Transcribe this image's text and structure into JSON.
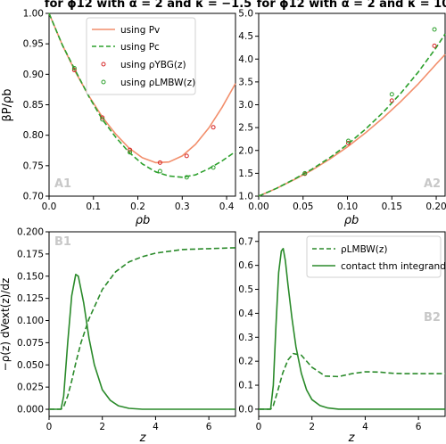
{
  "figure": {
    "y_label_top": "βP/ρb",
    "y_label_bottom": "−ρ(z) dVext(z)/dz",
    "x_label_top": "ρb",
    "x_label_bottom": "z"
  },
  "colors": {
    "orange": "#f28e6b",
    "green": "#2a8a2a",
    "red": "#d62728"
  },
  "chart_data": [
    {
      "id": "A1",
      "type": "line",
      "title": "for ϕ12 with α = 2 and κ = −1.5",
      "panel_label": "A1",
      "xlabel": "ρb",
      "ylabel": "βP/ρb",
      "xlim": [
        0,
        0.42
      ],
      "ylim": [
        0.7,
        1.0
      ],
      "xticks": [
        0.0,
        0.1,
        0.2,
        0.3,
        0.4
      ],
      "yticks": [
        0.7,
        0.75,
        0.8,
        0.85,
        0.9,
        0.95,
        1.0
      ],
      "xtick_labels": [
        "0.0",
        "0.1",
        "0.2",
        "0.3",
        "0.4"
      ],
      "ytick_labels": [
        "0.70",
        "0.75",
        "0.80",
        "0.85",
        "0.90",
        "0.95",
        "1.00"
      ],
      "legend_position": "upper-right",
      "series": [
        {
          "name": "using Pv",
          "style": "solid",
          "color": "#f28e6b",
          "x": [
            0,
            0.03,
            0.06,
            0.09,
            0.12,
            0.15,
            0.18,
            0.21,
            0.24,
            0.27,
            0.3,
            0.33,
            0.36,
            0.39,
            0.42
          ],
          "y": [
            1.0,
            0.948,
            0.903,
            0.864,
            0.83,
            0.802,
            0.779,
            0.763,
            0.755,
            0.756,
            0.766,
            0.785,
            0.812,
            0.846,
            0.885
          ]
        },
        {
          "name": "using Pc",
          "style": "dashed",
          "color": "#2ca02c",
          "x": [
            0,
            0.03,
            0.06,
            0.09,
            0.12,
            0.15,
            0.18,
            0.21,
            0.24,
            0.27,
            0.3,
            0.33,
            0.36,
            0.39,
            0.42
          ],
          "y": [
            1.0,
            0.948,
            0.905,
            0.863,
            0.826,
            0.797,
            0.772,
            0.753,
            0.74,
            0.733,
            0.731,
            0.735,
            0.745,
            0.758,
            0.773
          ]
        },
        {
          "name": "using ρYBG(z)",
          "style": "markers",
          "color": "#d62728",
          "x": [
            0.057,
            0.12,
            0.182,
            0.25,
            0.31,
            0.37
          ],
          "y": [
            0.907,
            0.829,
            0.776,
            0.755,
            0.766,
            0.813
          ]
        },
        {
          "name": "using ρLMBW(z)",
          "style": "markers",
          "color": "#2ca02c",
          "x": [
            0.057,
            0.12,
            0.182,
            0.25,
            0.31,
            0.37
          ],
          "y": [
            0.91,
            0.826,
            0.772,
            0.741,
            0.731,
            0.747
          ]
        }
      ]
    },
    {
      "id": "A2",
      "type": "line",
      "title": "for ϕ12 with α = 2 and κ = 10",
      "panel_label": "A2",
      "xlabel": "ρb",
      "xlim": [
        0,
        0.21
      ],
      "ylim": [
        1.0,
        5.0
      ],
      "xticks": [
        0.0,
        0.05,
        0.1,
        0.15,
        0.2
      ],
      "yticks": [
        1.0,
        1.5,
        2.0,
        2.5,
        3.0,
        3.5,
        4.0,
        4.5,
        5.0
      ],
      "xtick_labels": [
        "0.00",
        "0.05",
        "0.10",
        "0.15",
        "0.20"
      ],
      "ytick_labels": [
        "1.0",
        "1.5",
        "2.0",
        "2.5",
        "3.0",
        "3.5",
        "4.0",
        "4.5",
        "5.0"
      ],
      "series": [
        {
          "name": "using Pv",
          "style": "solid",
          "color": "#f28e6b",
          "x": [
            0,
            0.02,
            0.04,
            0.06,
            0.08,
            0.1,
            0.12,
            0.14,
            0.16,
            0.18,
            0.2,
            0.21
          ],
          "y": [
            1.0,
            1.17,
            1.36,
            1.57,
            1.81,
            2.08,
            2.38,
            2.71,
            3.07,
            3.46,
            3.89,
            4.1
          ]
        },
        {
          "name": "using Pc",
          "style": "dashed",
          "color": "#2ca02c",
          "x": [
            0,
            0.02,
            0.04,
            0.06,
            0.08,
            0.1,
            0.12,
            0.14,
            0.16,
            0.18,
            0.2,
            0.21
          ],
          "y": [
            1.0,
            1.17,
            1.37,
            1.59,
            1.84,
            2.13,
            2.46,
            2.83,
            3.25,
            3.72,
            4.25,
            4.55
          ]
        },
        {
          "name": "using ρYBG(z)",
          "style": "markers",
          "color": "#d62728",
          "x": [
            0.052,
            0.101,
            0.15,
            0.198
          ],
          "y": [
            1.49,
            2.16,
            3.09,
            4.29
          ]
        },
        {
          "name": "using ρLMBW(z)",
          "style": "markers",
          "color": "#2ca02c",
          "x": [
            0.052,
            0.101,
            0.15,
            0.198
          ],
          "y": [
            1.5,
            2.21,
            3.23,
            4.65
          ]
        }
      ]
    },
    {
      "id": "B1",
      "type": "line",
      "panel_label": "B1",
      "xlabel": "z",
      "ylabel": "−ρ(z) dVext(z)/dz",
      "xlim": [
        0,
        7
      ],
      "ylim": [
        -0.008,
        0.2
      ],
      "xticks": [
        0,
        2,
        4,
        6
      ],
      "yticks": [
        0.0,
        0.025,
        0.05,
        0.075,
        0.1,
        0.125,
        0.15,
        0.175,
        0.2
      ],
      "xtick_labels": [
        "0",
        "2",
        "4",
        "6"
      ],
      "ytick_labels": [
        "0.000",
        "0.025",
        "0.050",
        "0.075",
        "0.100",
        "0.125",
        "0.150",
        "0.175",
        "0.200"
      ],
      "series": [
        {
          "name": "ρLMBW(z)",
          "style": "dashed",
          "color": "#2a8a2a",
          "x": [
            0,
            0.45,
            0.55,
            0.7,
            0.85,
            1.0,
            1.2,
            1.5,
            2.0,
            2.5,
            3.0,
            3.5,
            4.0,
            5.0,
            6.0,
            7.0
          ],
          "y": [
            0,
            0,
            0.003,
            0.015,
            0.032,
            0.052,
            0.075,
            0.102,
            0.135,
            0.155,
            0.166,
            0.172,
            0.176,
            0.18,
            0.181,
            0.182
          ]
        },
        {
          "name": "contact thm integrand",
          "style": "solid",
          "color": "#2a8a2a",
          "x": [
            0,
            0.45,
            0.55,
            0.7,
            0.85,
            1.0,
            1.1,
            1.3,
            1.5,
            1.7,
            2.0,
            2.3,
            2.6,
            3.0,
            3.5,
            7.0
          ],
          "y": [
            0,
            0,
            0.015,
            0.075,
            0.128,
            0.152,
            0.15,
            0.12,
            0.08,
            0.05,
            0.022,
            0.01,
            0.004,
            0.001,
            0,
            0
          ]
        }
      ]
    },
    {
      "id": "B2",
      "type": "line",
      "panel_label": "B2",
      "xlabel": "z",
      "xlim": [
        0,
        7
      ],
      "ylim": [
        -0.03,
        0.74
      ],
      "xticks": [
        0,
        2,
        4,
        6
      ],
      "yticks": [
        0.0,
        0.1,
        0.2,
        0.3,
        0.4,
        0.5,
        0.6,
        0.7
      ],
      "xtick_labels": [
        "0",
        "2",
        "4",
        "6"
      ],
      "ytick_labels": [
        "0.0",
        "0.1",
        "0.2",
        "0.3",
        "0.4",
        "0.5",
        "0.6",
        "0.7"
      ],
      "legend_position": "upper-right",
      "series": [
        {
          "name": "ρLMBW(z)",
          "style": "dashed",
          "color": "#2a8a2a",
          "x": [
            0,
            0.45,
            0.55,
            0.7,
            0.9,
            1.1,
            1.3,
            1.6,
            2.0,
            2.5,
            3.0,
            3.5,
            4.0,
            4.5,
            5.0,
            5.5,
            6.0,
            7.0
          ],
          "y": [
            0,
            0,
            0.015,
            0.07,
            0.15,
            0.205,
            0.232,
            0.225,
            0.175,
            0.138,
            0.136,
            0.148,
            0.156,
            0.155,
            0.15,
            0.148,
            0.148,
            0.148
          ]
        },
        {
          "name": "contact thm integrand",
          "style": "solid",
          "color": "#2a8a2a",
          "x": [
            0,
            0.45,
            0.55,
            0.65,
            0.75,
            0.85,
            0.92,
            1.0,
            1.1,
            1.25,
            1.4,
            1.6,
            1.8,
            2.0,
            2.3,
            2.6,
            3.0,
            7.0
          ],
          "y": [
            0,
            0,
            0.1,
            0.35,
            0.57,
            0.66,
            0.67,
            0.62,
            0.52,
            0.38,
            0.26,
            0.15,
            0.08,
            0.04,
            0.015,
            0.005,
            0,
            0
          ]
        }
      ]
    }
  ]
}
